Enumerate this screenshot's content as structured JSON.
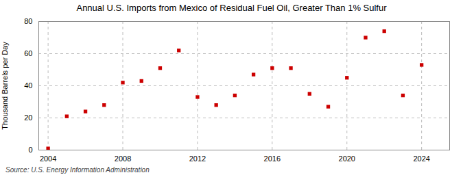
{
  "chart_data": {
    "type": "scatter",
    "title": "Annual U.S. Imports from Mexico of Residual Fuel Oil, Greater Than 1% Sulfur",
    "ylabel": "Thousand Barrels per Day",
    "source": "Source: U.S. Energy Information Administration",
    "x": [
      2004,
      2005,
      2006,
      2007,
      2008,
      2009,
      2010,
      2011,
      2012,
      2013,
      2014,
      2015,
      2016,
      2017,
      2018,
      2019,
      2020,
      2021,
      2022,
      2023,
      2024
    ],
    "values": [
      1,
      21,
      24,
      28,
      42,
      43,
      51,
      62,
      33,
      28,
      34,
      47,
      51,
      51,
      35,
      27,
      45,
      70,
      74,
      34,
      53
    ],
    "color": "#cc0000",
    "marker": "square",
    "xlim": [
      2003.5,
      2025.5
    ],
    "ylim": [
      0,
      80
    ],
    "xticks": [
      2004,
      2008,
      2012,
      2016,
      2020,
      2024
    ],
    "yticks": [
      0,
      20,
      40,
      60,
      80
    ],
    "grid": true
  }
}
